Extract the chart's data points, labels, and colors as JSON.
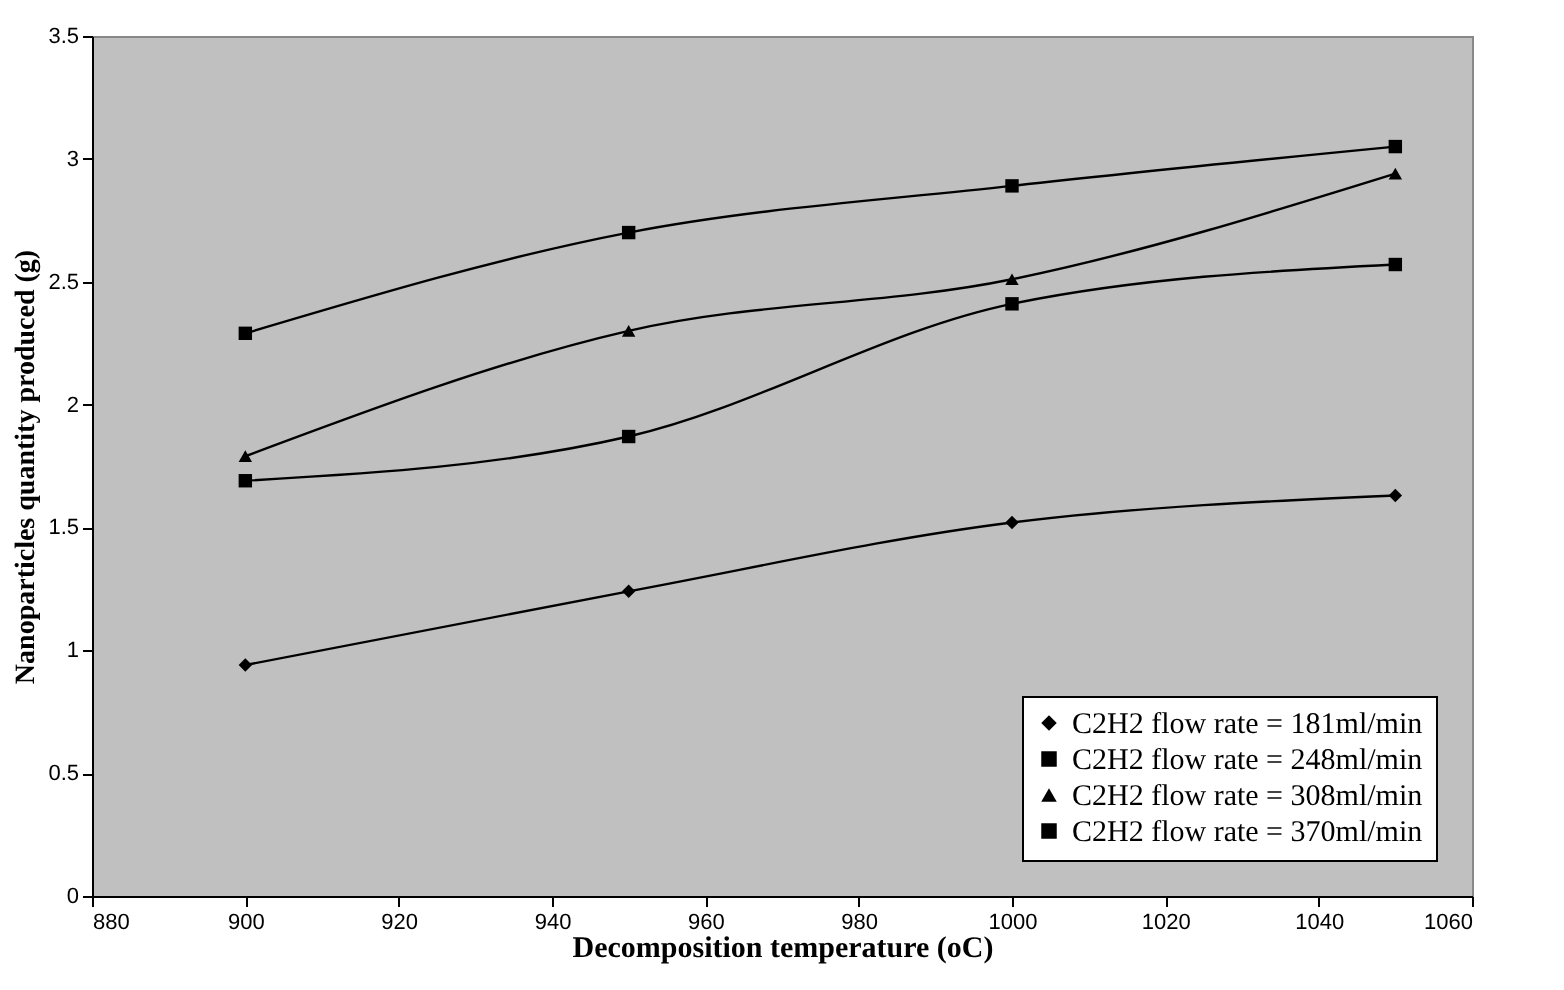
{
  "chart_data": {
    "type": "line",
    "xlabel": "Decomposition temperature (oC)",
    "ylabel": "Nanoparticles quantity produced (g)",
    "x": [
      900,
      950,
      1000,
      1050
    ],
    "series": [
      {
        "name": "C2H2 flow rate = 181ml/min",
        "color": "#000000",
        "marker": "diamond",
        "values": [
          0.94,
          1.24,
          1.52,
          1.63
        ]
      },
      {
        "name": "C2H2 flow rate = 248ml/min",
        "color": "#000000",
        "marker": "square",
        "values": [
          1.69,
          1.87,
          2.41,
          2.57
        ]
      },
      {
        "name": "C2H2 flow rate = 308ml/min",
        "color": "#000000",
        "marker": "triangle",
        "values": [
          1.79,
          2.3,
          2.51,
          2.94
        ]
      },
      {
        "name": "C2H2 flow rate = 370ml/min",
        "color": "#000000",
        "marker": "square",
        "values": [
          2.29,
          2.7,
          2.89,
          3.05
        ]
      }
    ],
    "xlim": [
      880,
      1060
    ],
    "xticks": [
      880,
      900,
      920,
      940,
      960,
      980,
      1000,
      1020,
      1040,
      1060
    ],
    "ylim": [
      0,
      3.5
    ],
    "yticks": [
      0,
      0.5,
      1,
      1.5,
      2,
      2.5,
      3,
      3.5
    ],
    "grid": false,
    "legend": "bottom right",
    "line_style": "solid"
  }
}
